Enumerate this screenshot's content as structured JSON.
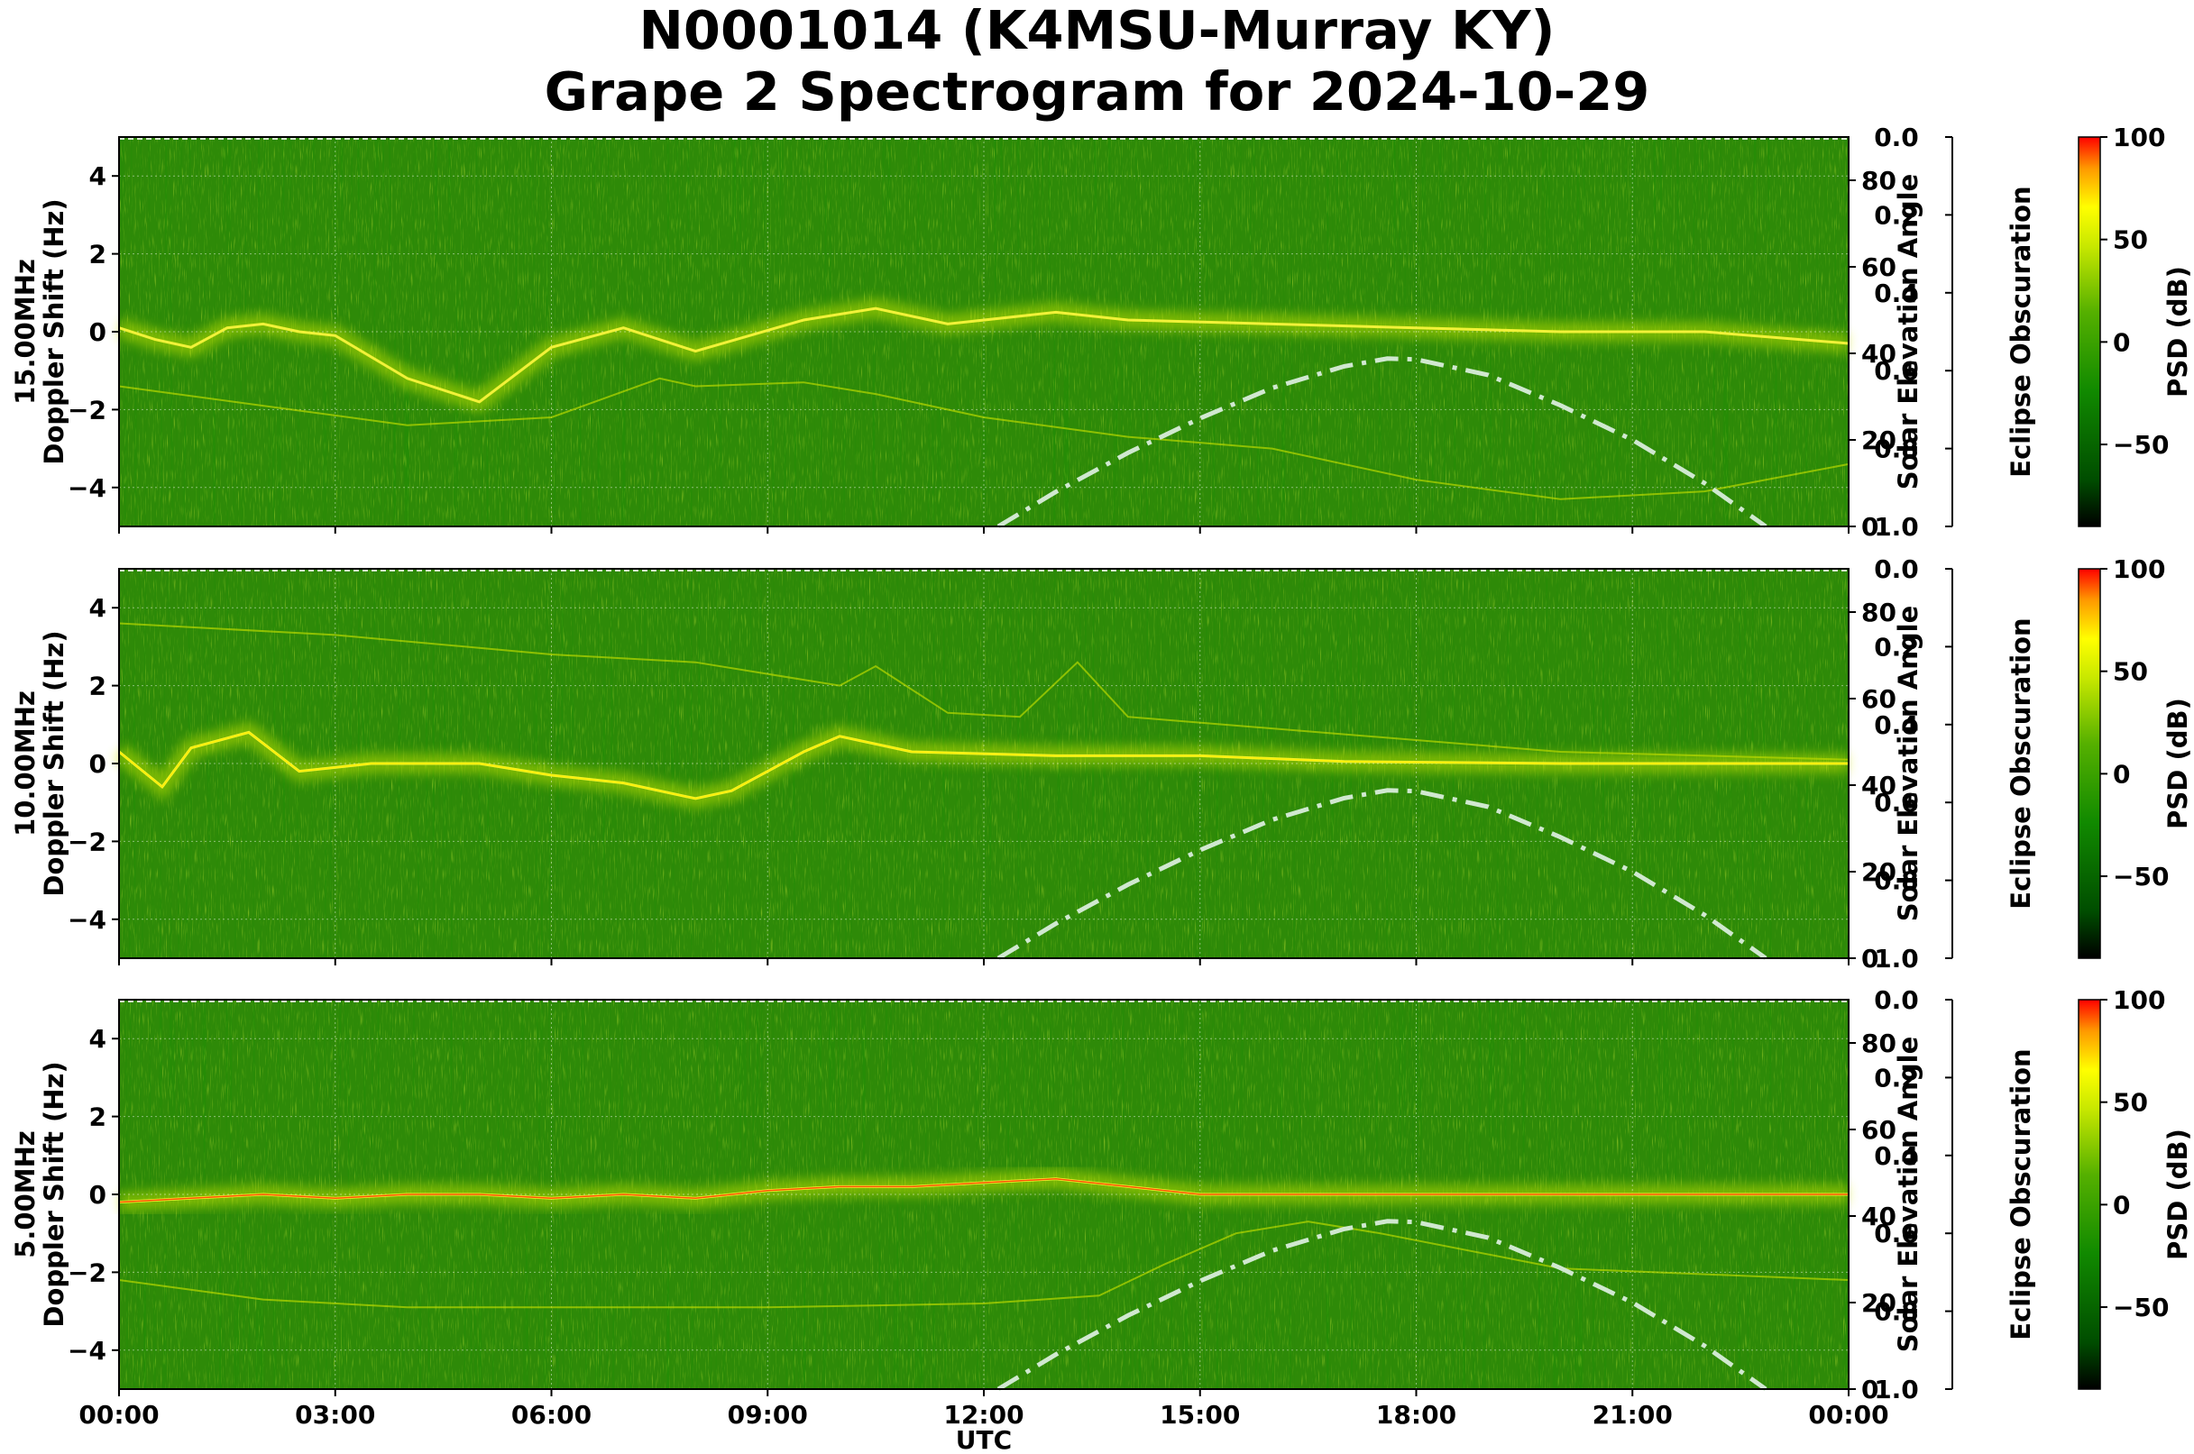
{
  "figure": {
    "title_line1": "N0001014 (K4MSU-Murray KY)",
    "title_line2": "Grape 2 Spectrogram for 2024-10-29"
  },
  "chart_data": {
    "type": "heatmap",
    "xlabel": "UTC",
    "x_ticks": [
      "00:00",
      "03:00",
      "06:00",
      "09:00",
      "12:00",
      "15:00",
      "18:00",
      "21:00",
      "00:00"
    ],
    "ylabel_suffix": "Doppler Shift (Hz)",
    "ylim": [
      -5,
      5
    ],
    "y_ticks": [
      4,
      2,
      0,
      -2,
      -4
    ],
    "right_axis_label": "Solar Elevation Angle",
    "right_ylim": [
      0,
      90
    ],
    "right_ticks": [
      0,
      20,
      40,
      60,
      80
    ],
    "eclipse_label": "Eclipse Obscuration",
    "eclipse_ylim": [
      1.0,
      0.0
    ],
    "eclipse_ticks": [
      "0.0",
      "0.2",
      "0.4",
      "0.6",
      "0.8",
      "1.0"
    ],
    "colorbar_label": "PSD (dB)",
    "colorbar_range": [
      -90,
      100
    ],
    "colorbar_ticks": [
      100,
      50,
      0,
      -50
    ],
    "colormap": [
      "#000000",
      "#006400",
      "#1a8c00",
      "#66bb00",
      "#ccee00",
      "#ffff00",
      "#ffaa00",
      "#ff0000"
    ],
    "grid": true,
    "solar_elevation_curve": {
      "style": "dash-dot",
      "color": "#d0e8d0",
      "points_utc_hours_deg": [
        [
          12.2,
          0
        ],
        [
          13,
          8
        ],
        [
          14,
          17
        ],
        [
          15,
          25
        ],
        [
          16,
          32
        ],
        [
          17,
          37
        ],
        [
          17.6,
          38.8
        ],
        [
          18,
          38.6
        ],
        [
          19,
          35
        ],
        [
          20,
          28
        ],
        [
          21,
          20
        ],
        [
          22,
          10
        ],
        [
          22.85,
          0
        ]
      ]
    },
    "panels": [
      {
        "label": "15.00MHz",
        "trace_color": "#f0f040",
        "main_trace_utc_hours_hz": [
          [
            0,
            0.1
          ],
          [
            0.5,
            -0.2
          ],
          [
            1,
            -0.4
          ],
          [
            1.5,
            0.1
          ],
          [
            2,
            0.2
          ],
          [
            2.5,
            0
          ],
          [
            3,
            -0.1
          ],
          [
            4,
            -1.2
          ],
          [
            5,
            -1.8
          ],
          [
            6,
            -0.4
          ],
          [
            7,
            0.1
          ],
          [
            8,
            -0.5
          ],
          [
            9.5,
            0.3
          ],
          [
            10.5,
            0.6
          ],
          [
            11.5,
            0.2
          ],
          [
            13,
            0.5
          ],
          [
            14,
            0.3
          ],
          [
            16,
            0.2
          ],
          [
            18,
            0.1
          ],
          [
            20,
            0
          ],
          [
            22,
            0
          ],
          [
            24,
            -0.3
          ]
        ],
        "secondary_trace_utc_hours_hz": [
          [
            0,
            -1.4
          ],
          [
            2,
            -1.9
          ],
          [
            4,
            -2.4
          ],
          [
            6,
            -2.2
          ],
          [
            7.5,
            -1.2
          ],
          [
            8,
            -1.4
          ],
          [
            9.5,
            -1.3
          ],
          [
            10.5,
            -1.6
          ],
          [
            12,
            -2.2
          ],
          [
            14,
            -2.7
          ],
          [
            16,
            -3
          ],
          [
            18,
            -3.8
          ],
          [
            20,
            -4.3
          ],
          [
            22,
            -4.1
          ],
          [
            24,
            -3.4
          ]
        ]
      },
      {
        "label": "10.00MHz",
        "trace_color": "#ffee00",
        "main_trace_utc_hours_hz": [
          [
            0,
            0.3
          ],
          [
            0.6,
            -0.6
          ],
          [
            1,
            0.4
          ],
          [
            1.8,
            0.8
          ],
          [
            2.5,
            -0.2
          ],
          [
            3.5,
            0
          ],
          [
            5,
            0
          ],
          [
            6,
            -0.3
          ],
          [
            7,
            -0.5
          ],
          [
            8,
            -0.9
          ],
          [
            8.5,
            -0.7
          ],
          [
            9.5,
            0.3
          ],
          [
            10,
            0.7
          ],
          [
            11,
            0.3
          ],
          [
            13,
            0.2
          ],
          [
            15,
            0.2
          ],
          [
            17,
            0.05
          ],
          [
            20,
            0
          ],
          [
            24,
            0
          ]
        ],
        "secondary_trace_utc_hours_hz": [
          [
            0,
            3.6
          ],
          [
            3,
            3.3
          ],
          [
            6,
            2.8
          ],
          [
            8,
            2.6
          ],
          [
            10,
            2
          ],
          [
            10.5,
            2.5
          ],
          [
            11.5,
            1.3
          ],
          [
            12.5,
            1.2
          ],
          [
            13.3,
            2.6
          ],
          [
            14,
            1.2
          ],
          [
            16,
            0.9
          ],
          [
            20,
            0.3
          ],
          [
            24,
            0.1
          ]
        ]
      },
      {
        "label": "5.00MHz",
        "trace_color": "#ff4000",
        "main_trace_utc_hours_hz": [
          [
            0,
            -0.2
          ],
          [
            1,
            -0.1
          ],
          [
            2,
            0
          ],
          [
            3,
            -0.1
          ],
          [
            4,
            0
          ],
          [
            5,
            0
          ],
          [
            6,
            -0.1
          ],
          [
            7,
            0
          ],
          [
            8,
            -0.1
          ],
          [
            9,
            0.1
          ],
          [
            10,
            0.2
          ],
          [
            11,
            0.2
          ],
          [
            12,
            0.3
          ],
          [
            13,
            0.4
          ],
          [
            15,
            0
          ],
          [
            18,
            0
          ],
          [
            21,
            0
          ],
          [
            24,
            0
          ]
        ],
        "secondary_trace_utc_hours_hz": [
          [
            0,
            -2.2
          ],
          [
            2,
            -2.7
          ],
          [
            4,
            -2.9
          ],
          [
            6,
            -2.9
          ],
          [
            9,
            -2.9
          ],
          [
            12,
            -2.8
          ],
          [
            13.6,
            -2.6
          ],
          [
            14.5,
            -1.8
          ],
          [
            15.5,
            -1.0
          ],
          [
            16.5,
            -0.7
          ],
          [
            17.5,
            -1
          ],
          [
            20,
            -1.9
          ],
          [
            24,
            -2.2
          ]
        ]
      }
    ]
  }
}
